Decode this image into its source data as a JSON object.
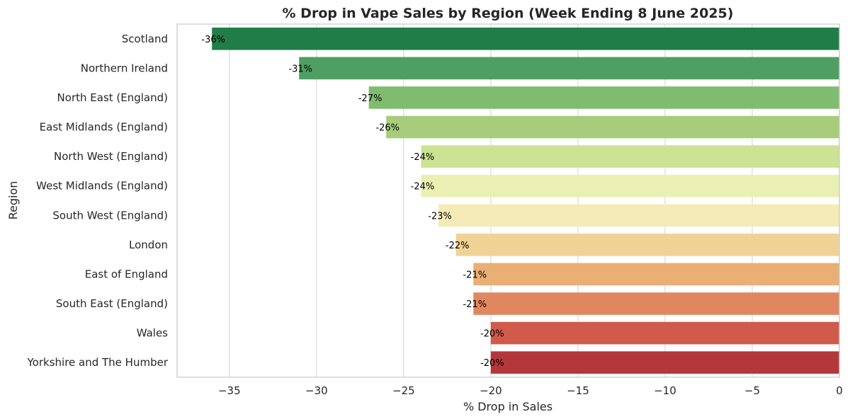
{
  "chart_data": {
    "type": "bar",
    "orientation": "horizontal",
    "title": "% Drop in Vape Sales by Region (Week Ending 8 June 2025)",
    "xlabel": "% Drop in Sales",
    "ylabel": "Region",
    "xlim": [
      -38,
      0
    ],
    "xticks": [
      -35,
      -30,
      -25,
      -20,
      -15,
      -10,
      -5,
      0
    ],
    "xtick_labels": [
      "−35",
      "−30",
      "−25",
      "−20",
      "−15",
      "−10",
      "−5",
      "0"
    ],
    "grid": true,
    "categories": [
      "Scotland",
      "Northern Ireland",
      "North East (England)",
      "East Midlands (England)",
      "North West (England)",
      "West Midlands (England)",
      "South West (England)",
      "London",
      "East of England",
      "South East (England)",
      "Wales",
      "Yorkshire and The Humber"
    ],
    "values": [
      -36,
      -31,
      -27,
      -26,
      -24,
      -24,
      -23,
      -22,
      -21,
      -21,
      -20,
      -20
    ],
    "data_labels": [
      "-36%",
      "-31%",
      "-27%",
      "-26%",
      "-24%",
      "-24%",
      "-23%",
      "-22%",
      "-21%",
      "-21%",
      "-20%",
      "-20%"
    ],
    "colors": [
      "#207d48",
      "#4f9f63",
      "#80bc70",
      "#a7cc7b",
      "#cbe393",
      "#eaf0b4",
      "#f4ebb6",
      "#f1d296",
      "#e9af75",
      "#e18760",
      "#d05b4b",
      "#b4383b"
    ]
  }
}
